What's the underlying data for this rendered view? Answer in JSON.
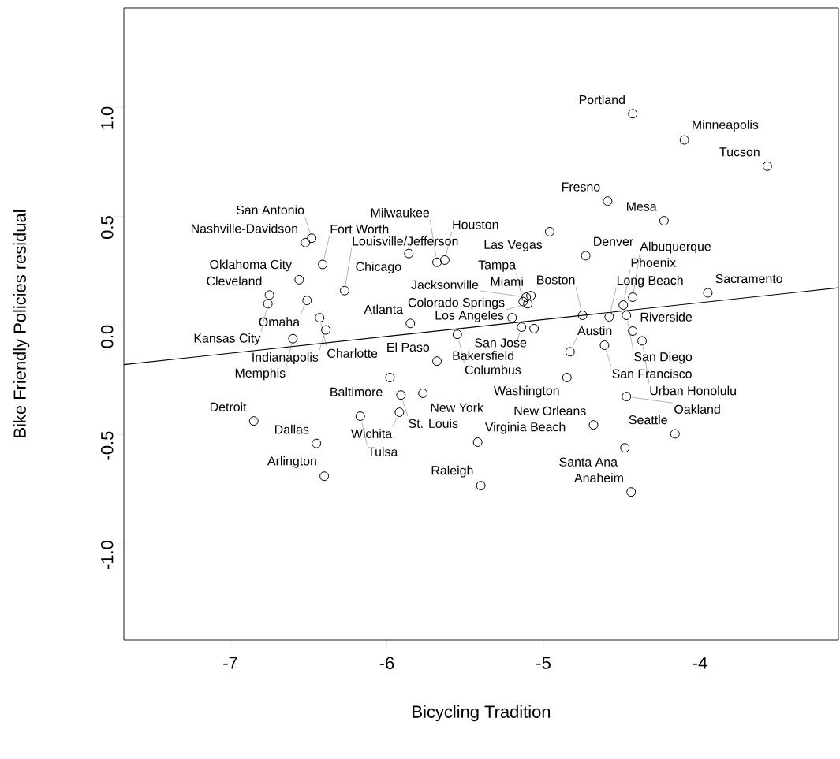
{
  "chart_data": {
    "type": "scatter",
    "xlabel": "Bicycling Tradition",
    "ylabel": "Bike Friendly Policies residual",
    "xlim": [
      -7.68,
      -3.116
    ],
    "ylim": [
      -1.44,
      1.455
    ],
    "xticks": [
      {
        "value": -7,
        "label": "-7"
      },
      {
        "value": -6,
        "label": "-6"
      },
      {
        "value": -5,
        "label": "-5"
      },
      {
        "value": -4,
        "label": "-4"
      }
    ],
    "yticks": [
      {
        "value": -1,
        "label": "-1.0"
      },
      {
        "value": -0.5,
        "label": "-0.5"
      },
      {
        "value": 0,
        "label": "0.0"
      },
      {
        "value": 0.5,
        "label": "0.5"
      },
      {
        "value": 1,
        "label": "1.0"
      }
    ],
    "series": [
      {
        "marker": "circle",
        "color": "#000000",
        "x": [
          -4.43,
          -4.1,
          -3.57,
          -4.59,
          -4.23,
          -4.96,
          -4.73,
          -6.48,
          -6.52,
          -5.86,
          -5.63,
          -5.68,
          -6.41,
          -6.56,
          -6.27,
          -6.75,
          -6.76,
          -6.51,
          -6.43,
          -6.39,
          -6.6,
          -5.85,
          -5.2,
          -5.55,
          -5.14,
          -5.06,
          -5.11,
          -5.08,
          -4.43,
          -3.95,
          -5.1,
          -5.13,
          -4.49,
          -4.75,
          -4.47,
          -4.58,
          -4.43,
          -4.37,
          -4.61,
          -4.83,
          -5.68,
          -5.98,
          -5.77,
          -5.91,
          -5.92,
          -6.17,
          -6.85,
          -6.45,
          -6.4,
          -5.42,
          -5.4,
          -4.85,
          -4.47,
          -4.68,
          -4.48,
          -4.44,
          -4.16
        ],
        "values": [
          0.97,
          0.85,
          0.73,
          0.57,
          0.48,
          0.43,
          0.32,
          0.4,
          0.38,
          0.33,
          0.3,
          0.29,
          0.28,
          0.21,
          0.16,
          0.14,
          0.1,
          0.115,
          0.036,
          -0.02,
          -0.06,
          0.01,
          0.036,
          -0.04,
          -0.007,
          -0.014,
          0.13,
          0.137,
          0.13,
          0.15,
          0.1,
          0.11,
          0.094,
          0.047,
          0.047,
          0.04,
          -0.025,
          -0.07,
          -0.09,
          -0.12,
          -0.163,
          -0.238,
          -0.31,
          -0.318,
          -0.397,
          -0.415,
          -0.437,
          -0.54,
          -0.69,
          -0.534,
          -0.733,
          -0.238,
          -0.325,
          -0.455,
          -0.56,
          -0.762,
          -0.496
        ]
      },
      {
        "type": "line",
        "color": "#000000",
        "x": [
          -7.68,
          -3.116
        ],
        "values": [
          -0.179,
          0.173
        ]
      }
    ],
    "annotations": [
      {
        "text": "Portland",
        "x": -4.43,
        "y": 0.97
      },
      {
        "text": "Minneapolis",
        "x": -4.1,
        "y": 0.85
      },
      {
        "text": "Tucson",
        "x": -3.57,
        "y": 0.73
      },
      {
        "text": "Fresno",
        "x": -4.59,
        "y": 0.57
      },
      {
        "text": "Mesa",
        "x": -4.23,
        "y": 0.48
      },
      {
        "text": "Las Vegas",
        "x": -4.96,
        "y": 0.43
      },
      {
        "text": "Denver",
        "x": -4.73,
        "y": 0.32
      },
      {
        "text": "San Antonio",
        "x": -6.48,
        "y": 0.4
      },
      {
        "text": "Nashville-Davidson",
        "x": -6.52,
        "y": 0.38
      },
      {
        "text": "Chicago",
        "x": -5.86,
        "y": 0.33
      },
      {
        "text": "Houston",
        "x": -5.63,
        "y": 0.3
      },
      {
        "text": "Milwaukee",
        "x": -5.68,
        "y": 0.29
      },
      {
        "text": "Fort Worth",
        "x": -6.41,
        "y": 0.28
      },
      {
        "text": "Oklahoma City",
        "x": -6.56,
        "y": 0.21
      },
      {
        "text": "Louisville/Jefferson",
        "x": -6.27,
        "y": 0.16
      },
      {
        "text": "Cleveland",
        "x": -6.75,
        "y": 0.14
      },
      {
        "text": "Kansas City",
        "x": -6.76,
        "y": 0.1
      },
      {
        "text": "Omaha",
        "x": -6.51,
        "y": 0.115
      },
      {
        "text": "Charlotte",
        "x": -6.43,
        "y": 0.036
      },
      {
        "text": "Indianapolis",
        "x": -6.39,
        "y": -0.02
      },
      {
        "text": "Memphis",
        "x": -6.6,
        "y": -0.06
      },
      {
        "text": "Atlanta",
        "x": -5.85,
        "y": 0.01
      },
      {
        "text": "Colorado Springs",
        "x": -5.2,
        "y": 0.036
      },
      {
        "text": "Columbus",
        "x": -5.55,
        "y": -0.04
      },
      {
        "text": "Bakersfield",
        "x": -5.14,
        "y": -0.007
      },
      {
        "text": "San Jose",
        "x": -5.06,
        "y": -0.014
      },
      {
        "text": "Jacksonville",
        "x": -5.11,
        "y": 0.13
      },
      {
        "text": "Miami",
        "x": -5.08,
        "y": 0.137
      },
      {
        "text": "Albuquerque",
        "x": -4.43,
        "y": 0.13
      },
      {
        "text": "Sacramento",
        "x": -3.95,
        "y": 0.15
      },
      {
        "text": "Los Angeles",
        "x": -5.1,
        "y": 0.1
      },
      {
        "text": "Tampa",
        "x": -5.13,
        "y": 0.11
      },
      {
        "text": "Phoenix",
        "x": -4.49,
        "y": 0.094
      },
      {
        "text": "Boston",
        "x": -4.75,
        "y": 0.047
      },
      {
        "text": "San Diego",
        "x": -4.47,
        "y": 0.047
      },
      {
        "text": "Long Beach",
        "x": -4.58,
        "y": 0.04
      },
      {
        "text": "Riverside",
        "x": -4.43,
        "y": -0.025
      },
      {
        "text": "Urban Honolulu",
        "x": -4.37,
        "y": -0.07
      },
      {
        "text": "San Francisco",
        "x": -4.61,
        "y": -0.09
      },
      {
        "text": "Austin",
        "x": -4.83,
        "y": -0.12
      },
      {
        "text": "El Paso",
        "x": -5.68,
        "y": -0.163
      },
      {
        "text": "Baltimore",
        "x": -5.98,
        "y": -0.238
      },
      {
        "text": "New York",
        "x": -5.77,
        "y": -0.31
      },
      {
        "text": "St. Louis",
        "x": -5.91,
        "y": -0.318
      },
      {
        "text": "Wichita",
        "x": -5.92,
        "y": -0.397
      },
      {
        "text": "Tulsa",
        "x": -6.17,
        "y": -0.415
      },
      {
        "text": "Detroit",
        "x": -6.85,
        "y": -0.437
      },
      {
        "text": "Dallas",
        "x": -6.45,
        "y": -0.54
      },
      {
        "text": "Arlington",
        "x": -6.4,
        "y": -0.69
      },
      {
        "text": "Virginia Beach",
        "x": -5.42,
        "y": -0.534
      },
      {
        "text": "Raleigh",
        "x": -5.4,
        "y": -0.733
      },
      {
        "text": "Washington",
        "x": -4.85,
        "y": -0.238
      },
      {
        "text": "Oakland",
        "x": -4.47,
        "y": -0.325
      },
      {
        "text": "New Orleans",
        "x": -4.68,
        "y": -0.455
      },
      {
        "text": "Santa Ana",
        "x": -4.48,
        "y": -0.56
      },
      {
        "text": "Anaheim",
        "x": -4.44,
        "y": -0.762
      },
      {
        "text": "Seattle",
        "x": -4.16,
        "y": -0.496
      }
    ]
  }
}
